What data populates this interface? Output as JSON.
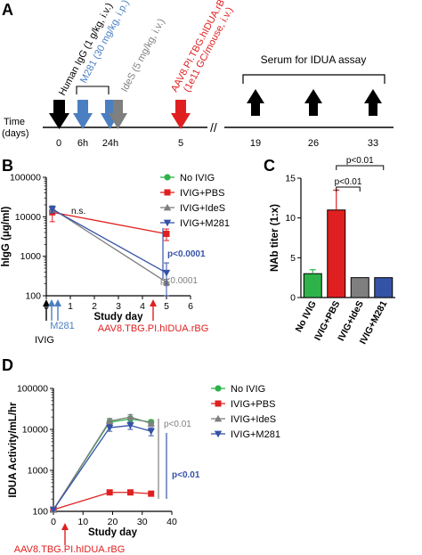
{
  "panels": {
    "A": {
      "letter": "A",
      "time_label_line1": "Time",
      "time_label_line2": "(days)",
      "axis_break": "//",
      "ticks": [
        "0",
        "6h",
        "24h",
        "5",
        "19",
        "26",
        "33"
      ],
      "events": [
        {
          "text": "Human IgG (1 g/kg, i.v.)",
          "color": "#000000"
        },
        {
          "text": "M281 (30 mg/kg, i.p.)",
          "color": "#4a7fc1"
        },
        {
          "text": "IdeS (5 mg/kg, i.v.)",
          "color": "#7f7f7f"
        },
        {
          "text": "AAV8.PI.TBG.hIDUA.rBG",
          "color": "#e02020"
        },
        {
          "text": "(1e11 GC/mouse, i.v.)",
          "color": "#e02020"
        }
      ],
      "serum_label": "Serum for IDUA assay"
    },
    "B": {
      "letter": "B",
      "annotations": {
        "ns": "n.s.",
        "p_m281": "p<0.0001",
        "p_ides": "p<0.0001"
      },
      "dosing_labels": {
        "ivig": "IVIG",
        "m281": "M281",
        "aav": "AAV8.TBG.PI.hIDUA.rBG"
      }
    },
    "C": {
      "letter": "C",
      "brackets": [
        "p<0.01",
        "p<0.01"
      ]
    },
    "D": {
      "letter": "D",
      "annotations": {
        "p_ides": "p<0.01",
        "p_m281": "p<0.01"
      },
      "dosing_labels": {
        "aav": "AAV8.TBG.PI.hIDUA.rBG"
      }
    }
  },
  "colors": {
    "no_ivig": "#2db34a",
    "ivig_pbs": "#e02020",
    "ivig_ides": "#7f7f7f",
    "ivig_m281": "#3553a6",
    "blue_light": "#4a7fc1",
    "black": "#000000"
  },
  "chart_data": [
    {
      "panel": "B",
      "type": "line",
      "ylabel": "hIgG (μg/ml)",
      "xlabel": "Study day",
      "yscale": "log",
      "ylim": [
        100,
        100000
      ],
      "yticks": [
        "100",
        "1000",
        "10000",
        "100000"
      ],
      "xlim": [
        0,
        6
      ],
      "xticks": [
        "0",
        "1",
        "2",
        "3",
        "4",
        "5",
        "6"
      ],
      "x": [
        0.25,
        5
      ],
      "series": [
        {
          "name": "No IVIG",
          "color": "#2db34a",
          "marker": "circle",
          "values": [
            null,
            null
          ]
        },
        {
          "name": "IVIG+PBS",
          "color": "#e02020",
          "marker": "square",
          "values": [
            13000,
            3700
          ],
          "err": [
            5500,
            1200
          ]
        },
        {
          "name": "IVIG+IdeS",
          "color": "#7f7f7f",
          "marker": "triangle-up",
          "values": [
            16000,
            220
          ],
          "err": [
            3000,
            40
          ]
        },
        {
          "name": "IVIG+M281",
          "color": "#3553a6",
          "marker": "triangle-down",
          "values": [
            15500,
            380
          ],
          "err": [
            3000,
            300
          ]
        }
      ],
      "legend": "right"
    },
    {
      "panel": "C",
      "type": "bar",
      "ylabel": "NAb titer (1:x)",
      "ylim": [
        0,
        15
      ],
      "yticks": [
        "0",
        "5",
        "10",
        "15"
      ],
      "categories": [
        "No IVIG",
        "IVIG+PBS",
        "IVIG+IdeS",
        "IVIG+M281"
      ],
      "values": [
        3,
        11,
        2.5,
        2.5
      ],
      "err": [
        0.5,
        2.5,
        0,
        0
      ],
      "bar_colors": [
        "#2db34a",
        "#e02020",
        "#7f7f7f",
        "#3553a6"
      ]
    },
    {
      "panel": "D",
      "type": "line",
      "ylabel": "IDUA Activity/mL/hr",
      "xlabel": "Study day",
      "yscale": "log",
      "ylim": [
        100,
        100000
      ],
      "yticks": [
        "100",
        "1000",
        "10000",
        "100000"
      ],
      "xlim": [
        0,
        40
      ],
      "xticks": [
        "0",
        "10",
        "20",
        "30",
        "40"
      ],
      "x": [
        0,
        19,
        26,
        33
      ],
      "series": [
        {
          "name": "No IVIG",
          "color": "#2db34a",
          "marker": "circle",
          "values": [
            110,
            15000,
            18000,
            15000
          ],
          "err": [
            0,
            2500,
            3000,
            2000
          ]
        },
        {
          "name": "IVIG+PBS",
          "color": "#e02020",
          "marker": "square",
          "values": [
            110,
            290,
            290,
            270
          ],
          "err": [
            0,
            0,
            0,
            0
          ]
        },
        {
          "name": "IVIG+IdeS",
          "color": "#7f7f7f",
          "marker": "triangle-up",
          "values": [
            110,
            16000,
            20000,
            14000
          ],
          "err": [
            0,
            2500,
            3000,
            2000
          ]
        },
        {
          "name": "IVIG+M281",
          "color": "#3553a6",
          "marker": "triangle-down",
          "values": [
            110,
            11000,
            12500,
            9000
          ],
          "err": [
            0,
            2000,
            2500,
            2000
          ]
        }
      ],
      "legend": "right"
    }
  ]
}
